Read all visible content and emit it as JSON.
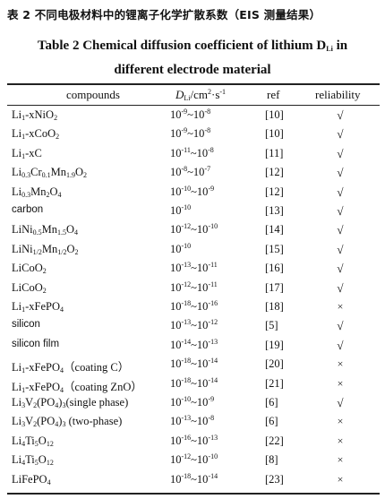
{
  "caption_cn": "表 2  不同电极材料中的锂离子化学扩散系数（EIS 测量结果）",
  "caption_en_line1": "Table 2   Chemical diffusion coefficient of lithium D",
  "caption_en_sub": "Li",
  "caption_en_line1_end": " in",
  "caption_en_line2": "different electrode material",
  "headers": {
    "compounds": "compounds",
    "d_main": "D",
    "d_sub": "Li",
    "d_unit": "/cm",
    "d_unit_sup": "2",
    "d_unit_end": "·s",
    "d_unit_sup2": "-1",
    "ref": "ref",
    "reliability": "reliability"
  },
  "marks": {
    "yes": "√",
    "no": "×"
  },
  "rows": [
    {
      "compound": "Li1-xNiO2",
      "d_lo": "-9",
      "d_hi": "-8",
      "ref": "[10]",
      "reliable": true
    },
    {
      "compound": "Li1-xCoO2",
      "d_lo": "-9",
      "d_hi": "-8",
      "ref": "[10]",
      "reliable": true
    },
    {
      "compound": "Li1-xC",
      "d_lo": "-11",
      "d_hi": "-8",
      "ref": "[11]",
      "reliable": true
    },
    {
      "compound": "Li0.3Cr0.1Mn1.9O2",
      "d_lo": "-8",
      "d_hi": "-7",
      "ref": "[12]",
      "reliable": true
    },
    {
      "compound": "Li0.3Mn2O4",
      "d_lo": "-10",
      "d_hi": "-9",
      "ref": "[12]",
      "reliable": true
    },
    {
      "compound": "carbon",
      "d_lo": "-10",
      "d_hi": null,
      "ref": "[13]",
      "reliable": true
    },
    {
      "compound": "LiNi0.5Mn1.5O4",
      "d_lo": "-12",
      "d_hi": "-10",
      "ref": "[14]",
      "reliable": true
    },
    {
      "compound": "LiNi1/2Mn1/2O2",
      "d_lo": "-10",
      "d_hi": null,
      "ref": "[15]",
      "reliable": true
    },
    {
      "compound": "LiCoO2",
      "d_lo": "-13",
      "d_hi": "-11",
      "ref": "[16]",
      "reliable": true
    },
    {
      "compound": "LiCoO2",
      "d_lo": "-12",
      "d_hi": "-11",
      "ref": "[17]",
      "reliable": true
    },
    {
      "compound": "Li1-xFePO4",
      "d_lo": "-18",
      "d_hi": "-16",
      "ref": "[18]",
      "reliable": false
    },
    {
      "compound": "silicon",
      "d_lo": "-13",
      "d_hi": "-12",
      "ref": "[5]",
      "reliable": true
    },
    {
      "compound": "silicon film",
      "d_lo": "-14",
      "d_hi": "-13",
      "ref": "[19]",
      "reliable": true
    },
    {
      "compound": "Li1-xFePO4（coating C）",
      "d_lo": "-18",
      "d_hi": "-14",
      "ref": "[20]",
      "reliable": false
    },
    {
      "compound": "Li1-xFePO4（coating ZnO）",
      "d_lo": "-18",
      "d_hi": "-14",
      "ref": "[21]",
      "reliable": false
    },
    {
      "compound": "Li3V2(PO4)3(single phase)",
      "d_lo": "-10",
      "d_hi": "-9",
      "ref": "[6]",
      "reliable": true
    },
    {
      "compound": "Li3V2(PO4)3 (two-phase)",
      "d_lo": "-13",
      "d_hi": "-8",
      "ref": "[6]",
      "reliable": false
    },
    {
      "compound": "Li4Ti5O12",
      "d_lo": "-16",
      "d_hi": "-13",
      "ref": "[22]",
      "reliable": false
    },
    {
      "compound": "Li4Ti5O12",
      "d_lo": "-12",
      "d_hi": "-10",
      "ref": "[8]",
      "reliable": false
    },
    {
      "compound": "LiFePO4",
      "d_lo": "-18",
      "d_hi": "-14",
      "ref": "[23]",
      "reliable": false
    }
  ]
}
